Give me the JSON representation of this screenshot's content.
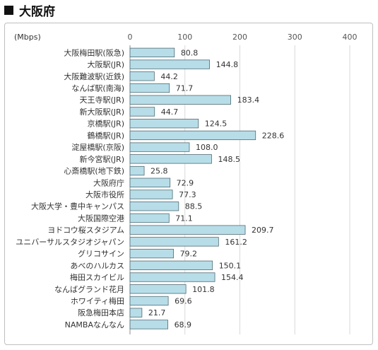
{
  "heading": {
    "title": "大阪府"
  },
  "chart_data": {
    "type": "bar",
    "orientation": "horizontal",
    "unit_label": "(Mbps)",
    "xlim": [
      0,
      400
    ],
    "ticks": [
      0,
      100,
      200,
      300,
      400
    ],
    "grid": true,
    "bar_color": "#b7dde8",
    "bar_border_color": "#4f6b73",
    "categories": [
      "大阪梅田駅(阪急)",
      "大阪駅(JR)",
      "大阪難波駅(近鉄)",
      "なんば駅(南海)",
      "天王寺駅(JR)",
      "新大阪駅(JR)",
      "京橋駅(JR)",
      "鶴橋駅(JR)",
      "淀屋橋駅(京阪)",
      "新今宮駅(JR)",
      "心斎橋駅(地下鉄)",
      "大阪府庁",
      "大阪市役所",
      "大阪大学・豊中キャンパス",
      "大阪国際空港",
      "ヨドコウ桜スタジアム",
      "ユニバーサルスタジオジャパン",
      "グリコサイン",
      "あべのハルカス",
      "梅田スカイビル",
      "なんばグランド花月",
      "ホワイティ梅田",
      "阪急梅田本店",
      "NAMBAなんなん"
    ],
    "values": [
      80.8,
      144.8,
      44.2,
      71.7,
      183.4,
      44.7,
      124.5,
      228.6,
      108.0,
      148.5,
      25.8,
      72.9,
      77.3,
      88.5,
      71.1,
      209.7,
      161.2,
      79.2,
      150.1,
      154.4,
      101.8,
      69.6,
      21.7,
      68.9
    ],
    "value_labels": [
      "80.8",
      "144.8",
      "44.2",
      "71.7",
      "183.4",
      "44.7",
      "124.5",
      "228.6",
      "108.0",
      "148.5",
      "25.8",
      "72.9",
      "77.3",
      "88.5",
      "71.1",
      "209.7",
      "161.2",
      "79.2",
      "150.1",
      "154.4",
      "101.8",
      "69.6",
      "21.7",
      "68.9"
    ]
  }
}
